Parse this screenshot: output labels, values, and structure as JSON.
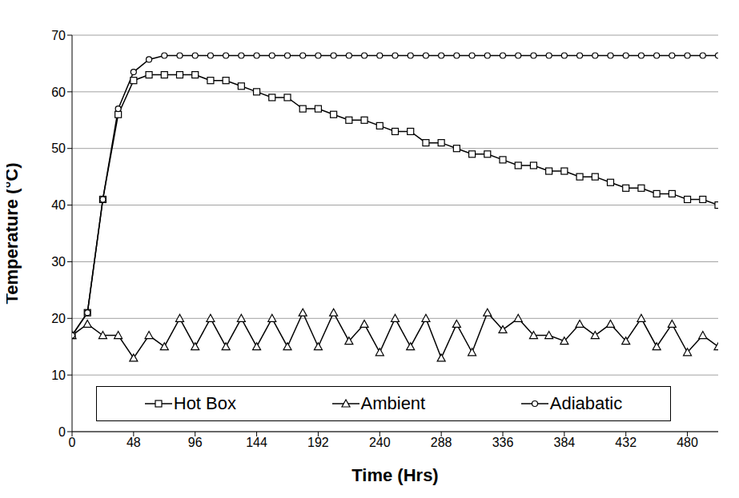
{
  "chart_data": {
    "type": "line",
    "x_label": "Time (Hrs)",
    "y_label": "Temperature (°C)",
    "x": [
      0,
      12,
      24,
      36,
      48,
      60,
      72,
      84,
      96,
      108,
      120,
      132,
      144,
      156,
      168,
      180,
      192,
      204,
      216,
      228,
      240,
      252,
      264,
      276,
      288,
      300,
      312,
      324,
      336,
      348,
      360,
      372,
      384,
      396,
      408,
      420,
      432,
      444,
      456,
      468,
      480,
      492,
      504
    ],
    "series": [
      {
        "name": "Hot Box",
        "color": "#000000",
        "marker": "square",
        "values": [
          17,
          21,
          41,
          56,
          62,
          63,
          63,
          63,
          63,
          62,
          62,
          61,
          60,
          59,
          59,
          57,
          57,
          56,
          55,
          55,
          54,
          53,
          53,
          51,
          51,
          50,
          49,
          49,
          48,
          47,
          47,
          46,
          46,
          45,
          45,
          44,
          43,
          43,
          42,
          42,
          41,
          41,
          40
        ]
      },
      {
        "name": "Ambient",
        "color": "#000000",
        "marker": "triangle",
        "values": [
          17,
          19,
          17,
          17,
          13,
          17,
          15,
          20,
          15,
          20,
          15,
          20,
          15,
          20,
          15,
          21,
          15,
          21,
          16,
          19,
          14,
          20,
          15,
          20,
          13,
          19,
          14,
          21,
          18,
          20,
          17,
          17,
          16,
          19,
          17,
          19,
          16,
          20,
          15,
          19,
          14,
          17,
          15
        ]
      },
      {
        "name": "Adiabatic",
        "color": "#000000",
        "marker": "circle",
        "values": [
          17,
          21,
          41,
          57,
          63.5,
          65.7,
          66.4,
          66.4,
          66.4,
          66.4,
          66.4,
          66.4,
          66.4,
          66.4,
          66.4,
          66.4,
          66.4,
          66.4,
          66.4,
          66.4,
          66.4,
          66.4,
          66.4,
          66.4,
          66.4,
          66.4,
          66.4,
          66.4,
          66.4,
          66.4,
          66.4,
          66.4,
          66.4,
          66.4,
          66.4,
          66.4,
          66.4,
          66.4,
          66.4,
          66.4,
          66.4,
          66.4,
          66.4
        ]
      }
    ],
    "xlim": [
      0,
      504
    ],
    "xticks": [
      0,
      48,
      96,
      144,
      192,
      240,
      288,
      336,
      384,
      432,
      480
    ],
    "ylim": [
      0,
      70
    ],
    "yticks": [
      0,
      10,
      20,
      30,
      40,
      50,
      60,
      70
    ],
    "grid": true,
    "legend": "lower center"
  }
}
